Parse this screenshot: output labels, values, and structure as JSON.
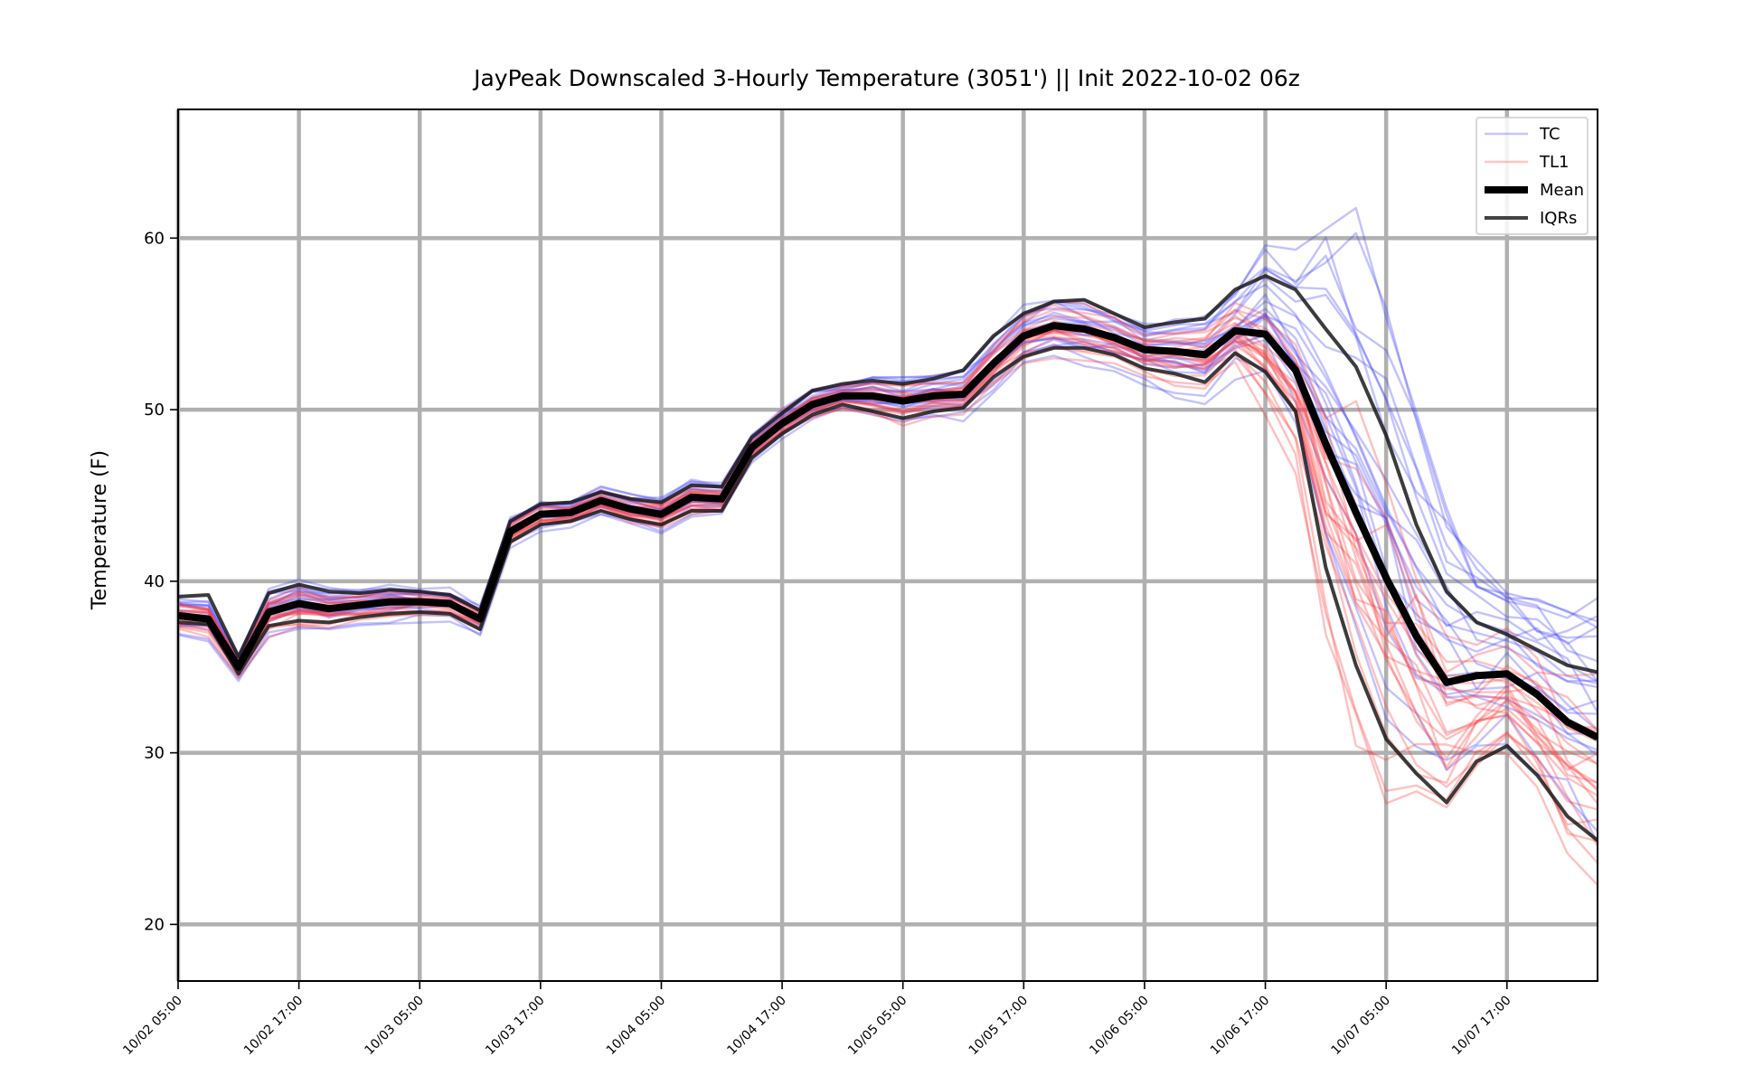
{
  "chart_data": {
    "type": "line",
    "title": "JayPeak Downscaled 3-Hourly Temperature (3051') || Init 2022-10-02 06z",
    "ylabel": "Temperature (F)",
    "xlabel": "",
    "x_start": "10/02 05:00",
    "x_step_hours": 3,
    "ylim": [
      16.7,
      67.5
    ],
    "xlim_hours": [
      0,
      141
    ],
    "yticks": [
      20,
      30,
      40,
      50,
      60
    ],
    "xticks_hours": [
      0,
      12,
      24,
      36,
      48,
      60,
      72,
      84,
      96,
      108,
      120,
      132
    ],
    "xtick_labels": [
      "10/02 05:00",
      "10/02 17:00",
      "10/03 05:00",
      "10/03 17:00",
      "10/04 05:00",
      "10/04 17:00",
      "10/05 05:00",
      "10/05 17:00",
      "10/06 05:00",
      "10/06 17:00",
      "10/07 05:00",
      "10/07 17:00"
    ],
    "grid": true,
    "legend": {
      "position": "top-right",
      "entries": [
        {
          "label": "TC",
          "color": "#4a4aff"
        },
        {
          "label": "TL1",
          "color": "#ff4a4a"
        },
        {
          "label": "Mean",
          "color": "#000000"
        },
        {
          "label": "IQRs",
          "color": "#222222"
        }
      ]
    },
    "colors": {
      "tc": "#4040ff",
      "tl1": "#ff3b3b",
      "mean": "#000000",
      "iqr": "#1a1a1a",
      "grid": "#b0b0b0"
    },
    "mean": [
      38.0,
      37.8,
      35.0,
      38.2,
      38.7,
      38.4,
      38.6,
      38.8,
      38.8,
      38.7,
      37.8,
      42.9,
      43.9,
      44.0,
      44.7,
      44.2,
      43.9,
      44.9,
      44.8,
      47.8,
      49.2,
      50.3,
      50.8,
      50.8,
      50.5,
      50.8,
      50.9,
      52.7,
      54.3,
      54.9,
      54.7,
      54.2,
      53.5,
      53.4,
      53.2,
      54.6,
      54.4,
      52.3,
      48.0,
      44.0,
      40.2,
      36.8,
      34.1,
      34.5,
      34.6,
      33.4,
      31.8,
      30.9
    ],
    "iqr_upper": [
      39.1,
      39.2,
      35.6,
      39.3,
      39.8,
      39.4,
      39.3,
      39.5,
      39.4,
      39.2,
      38.3,
      43.5,
      44.5,
      44.6,
      45.2,
      44.8,
      44.6,
      45.6,
      45.5,
      48.4,
      49.8,
      51.1,
      51.5,
      51.7,
      51.5,
      51.8,
      52.3,
      54.3,
      55.6,
      56.3,
      56.4,
      55.6,
      54.8,
      55.1,
      55.3,
      57.0,
      57.8,
      57.0,
      54.7,
      52.5,
      48.5,
      43.3,
      39.4,
      37.6,
      36.9,
      36.0,
      35.1,
      34.7
    ],
    "iqr_lower": [
      37.6,
      37.5,
      34.6,
      37.4,
      37.7,
      37.6,
      37.9,
      38.1,
      38.2,
      38.1,
      37.2,
      42.3,
      43.3,
      43.5,
      44.1,
      43.6,
      43.3,
      44.1,
      44.1,
      47.2,
      48.6,
      49.7,
      50.3,
      49.9,
      49.5,
      49.9,
      50.1,
      51.9,
      53.1,
      53.6,
      53.6,
      53.2,
      52.4,
      52.1,
      51.6,
      53.3,
      52.2,
      49.9,
      40.8,
      35.1,
      30.8,
      28.8,
      27.1,
      29.5,
      30.4,
      28.7,
      26.3,
      24.9
    ],
    "tc_members": 21,
    "tl1_members": 21
  }
}
